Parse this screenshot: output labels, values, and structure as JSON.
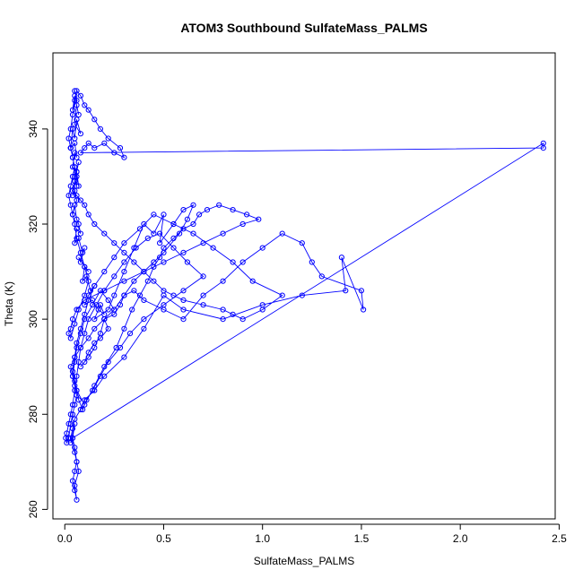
{
  "chart_data": {
    "type": "line",
    "title": "ATOM3 Southbound SulfateMass_PALMS",
    "xlabel": "SulfateMass_PALMS",
    "ylabel": "Theta (K)",
    "xlim": [
      -0.06,
      2.48
    ],
    "ylim": [
      258,
      356
    ],
    "xticks": [
      0,
      0.5,
      1,
      1.5,
      2,
      2.5
    ],
    "xtick_labels": [
      "0.0",
      "0.5",
      "1.0",
      "1.5",
      "2.0",
      "2.5"
    ],
    "yticks": [
      260,
      280,
      300,
      320,
      340
    ],
    "ytick_labels": [
      "260",
      "280",
      "300",
      "320",
      "340"
    ],
    "grid": false,
    "legend": "none",
    "series": [
      {
        "color": "#0000ff",
        "marker": "open-circle",
        "x": [
          0.05,
          0.06,
          0.04,
          0.05,
          0.07,
          0.06,
          0.05,
          0.08,
          0.06,
          0.05,
          0.04,
          0.03,
          0.05,
          0.06,
          0.05,
          0.04,
          0.06,
          0.07,
          0.05,
          0.06,
          0.05,
          0.04,
          0.05,
          0.06,
          0.04,
          0.05,
          0.06,
          0.07,
          0.08,
          0.06,
          0.05,
          0.07,
          0.09,
          0.1,
          0.08,
          0.07,
          0.12,
          0.1,
          0.09,
          0.11,
          0.13,
          0.15,
          0.12,
          0.1,
          0.14,
          0.17,
          0.2,
          0.18,
          0.15,
          0.22,
          0.25,
          0.3,
          0.35,
          0.4,
          0.45,
          0.5,
          0.48,
          0.55,
          0.6,
          0.65,
          0.62,
          0.58,
          0.5,
          0.45,
          0.4,
          0.35,
          0.3,
          0.28,
          0.25,
          0.2,
          0.22,
          0.18,
          0.15,
          0.12,
          0.1,
          0.08,
          0.12,
          0.15,
          0.18,
          0.2,
          0.25,
          0.3,
          0.35,
          0.4,
          0.5,
          0.6,
          0.7,
          0.8,
          0.9,
          1.0,
          1.1,
          1.2,
          1.25,
          1.3,
          1.5,
          1.51,
          1.4,
          1.42,
          1.2,
          1.0,
          0.8,
          0.6,
          0.5,
          0.4,
          0.3,
          0.2,
          0.15,
          0.1,
          0.08,
          0.05,
          0.04,
          0.03,
          0.05,
          0.06,
          0.05,
          0.04,
          0.05,
          0.06,
          0.05,
          0.07,
          0.06,
          0.05,
          0.04,
          0.05,
          0.03,
          0.04,
          2.42,
          2.42,
          0.08,
          0.1,
          0.12,
          0.15,
          0.2,
          0.25,
          0.3,
          0.28,
          0.22,
          0.18,
          0.15,
          0.12,
          0.1,
          0.08,
          0.06,
          0.05,
          0.04,
          0.03,
          0.02,
          0.03,
          0.04,
          0.05,
          0.06,
          0.07,
          0.06,
          0.05,
          0.04,
          0.06,
          0.08,
          0.1,
          0.12,
          0.15,
          0.2,
          0.25,
          0.3,
          0.35,
          0.4,
          0.45,
          0.5,
          0.55,
          0.6,
          0.7,
          0.8,
          0.85,
          0.9,
          1.0,
          1.1,
          0.95,
          0.85,
          0.75,
          0.65,
          0.55,
          0.45,
          0.38,
          0.3,
          0.25,
          0.2,
          0.15,
          0.12,
          0.1,
          0.08,
          0.06,
          0.05,
          0.04,
          0.05,
          0.06,
          0.07,
          0.09,
          0.11,
          0.14,
          0.18,
          0.22,
          0.28,
          0.33,
          0.4,
          0.5,
          0.6,
          0.7,
          0.62,
          0.55,
          0.48,
          0.42,
          0.36,
          0.3,
          0.25,
          0.2,
          0.16,
          0.12,
          0.1,
          0.08,
          0.07,
          0.06,
          0.05,
          0.04,
          0.03,
          0.02,
          0.01,
          0.005,
          0.01,
          0.02,
          0.03,
          0.04,
          0.05,
          0.06,
          0.05,
          0.04,
          0.03,
          0.05,
          0.08,
          0.12,
          0.15,
          0.2,
          0.25,
          0.22,
          0.18,
          0.14,
          0.1,
          0.08,
          0.06,
          0.05,
          0.04,
          0.06,
          0.1,
          0.15,
          0.2,
          0.26,
          0.3,
          0.34,
          0.38,
          0.42,
          0.45,
          0.48,
          0.5,
          0.55,
          0.6,
          0.65,
          0.68,
          0.72,
          0.78,
          0.85,
          0.92,
          0.98,
          0.9,
          0.8,
          0.7,
          0.6,
          0.5,
          0.4,
          0.3,
          0.2,
          0.1,
          0.06,
          0.04,
          0.03,
          0.02,
          0.03,
          0.05,
          0.07,
          0.1,
          0.12,
          0.1,
          0.08,
          0.06,
          0.05,
          0.04,
          0.03,
          0.02,
          0.03,
          0.04,
          0.05,
          0.04,
          0.03
        ],
        "y": [
          348,
          346,
          344,
          347,
          343,
          345,
          341,
          339,
          342,
          338,
          340,
          336,
          337,
          334,
          335,
          332,
          331,
          333,
          330,
          328,
          329,
          326,
          327,
          325,
          322,
          324,
          321,
          320,
          318,
          319,
          316,
          317,
          314,
          315,
          312,
          313,
          310,
          311,
          308,
          309,
          306,
          307,
          305,
          303,
          304,
          302,
          301,
          303,
          300,
          302,
          305,
          310,
          315,
          320,
          318,
          322,
          316,
          320,
          323,
          324,
          321,
          318,
          314,
          312,
          310,
          308,
          305,
          303,
          301,
          300,
          298,
          296,
          295,
          293,
          291,
          290,
          292,
          294,
          297,
          300,
          302,
          305,
          306,
          304,
          302,
          300,
          305,
          308,
          312,
          315,
          318,
          316,
          312,
          309,
          306,
          302,
          313,
          306,
          305,
          303,
          300,
          302,
          305,
          298,
          292,
          288,
          285,
          283,
          281,
          279,
          277,
          275,
          272,
          270,
          268,
          266,
          264,
          262,
          265,
          268,
          270,
          273,
          275,
          278,
          274,
          275,
          337,
          336,
          335,
          336,
          337,
          336,
          337,
          335,
          334,
          336,
          338,
          340,
          342,
          344,
          345,
          347,
          348,
          346,
          343,
          340,
          338,
          336,
          334,
          332,
          330,
          328,
          331,
          329,
          327,
          326,
          325,
          324,
          322,
          320,
          318,
          316,
          314,
          312,
          310,
          308,
          306,
          305,
          304,
          303,
          302,
          301,
          300,
          302,
          305,
          308,
          312,
          315,
          318,
          320,
          322,
          319,
          316,
          313,
          310,
          307,
          304,
          301,
          298,
          295,
          292,
          289,
          287,
          285,
          283,
          281,
          283,
          285,
          288,
          291,
          294,
          297,
          300,
          303,
          306,
          309,
          312,
          315,
          318,
          317,
          315,
          312,
          309,
          306,
          303,
          300,
          297,
          294,
          291,
          288,
          285,
          282,
          280,
          278,
          276,
          275,
          274,
          275,
          278,
          280,
          282,
          284,
          286,
          288,
          290,
          292,
          294,
          296,
          298,
          300,
          302,
          304,
          306,
          303,
          300,
          297,
          294,
          291,
          288,
          285,
          282,
          286,
          290,
          294,
          298,
          302,
          305,
          308,
          311,
          313,
          315,
          317,
          319,
          320,
          322,
          323,
          324,
          323,
          322,
          321,
          320,
          318,
          316,
          314,
          312,
          310,
          308,
          306,
          304,
          302,
          300,
          298,
          297,
          296,
          299,
          302,
          305,
          308,
          311,
          314,
          317,
          320,
          322,
          324,
          326,
          328,
          330,
          332,
          334,
          336
        ]
      }
    ]
  }
}
